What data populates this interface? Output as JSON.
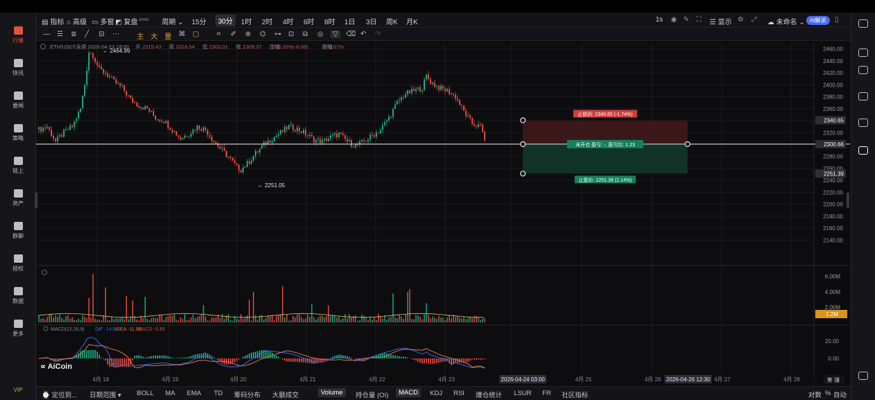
{
  "sidebar": {
    "items": [
      {
        "label": "行情",
        "active": true
      },
      {
        "label": "快讯"
      },
      {
        "label": "要闻"
      },
      {
        "label": "策略"
      },
      {
        "label": "链上"
      },
      {
        "label": "资产"
      },
      {
        "label": "群聊"
      },
      {
        "label": "授权"
      },
      {
        "label": "数据"
      },
      {
        "label": "更多"
      }
    ],
    "vip": "VIP"
  },
  "toolbar": {
    "indicators": "指标",
    "advanced": "高级",
    "multi_window": "多窗",
    "replay": "复盘",
    "period": "周期",
    "timeframes": [
      "15分",
      "30分",
      "1时",
      "2时",
      "4时",
      "6时",
      "8时",
      "1日",
      "3日",
      "周K",
      "月K"
    ],
    "selected_timeframe": "30分",
    "interval": "1s",
    "display": "显示",
    "unnamed": "未命名",
    "ai_button": "AI解读"
  },
  "drawing_tools": {
    "labels": [
      "主",
      "大",
      "量"
    ]
  },
  "info": {
    "symbol": "ETH/USDT永续",
    "time": "2026-04-23 18:00",
    "open_label": "开",
    "open": "2315.43",
    "high_label": "高",
    "high": "2318.54",
    "low_label": "低",
    "low": "2303.01",
    "close_label": "收",
    "close": "2309.37",
    "change_label": "涨幅",
    "change": "-0.26%(-6.06)",
    "amp_label": "振幅",
    "amp": "0.67%"
  },
  "chart_data": {
    "type": "candlestick",
    "price_axis": {
      "ticks": [
        "2460.00",
        "2440.00",
        "2420.00",
        "2400.00",
        "2380.00",
        "2360.00",
        "2340.00",
        "2320.00",
        "2300.00",
        "2280.00",
        "2260.00",
        "2240.00",
        "2220.00",
        "2200.00",
        "2180.00",
        "2160.00",
        "2140.00"
      ],
      "ylim": [
        2130,
        2470
      ]
    },
    "price_badges": {
      "stop_loss": "2340.65",
      "entry": "2300.66",
      "take_profit": "2251.39"
    },
    "annotations": {
      "high": "2464.99",
      "low": "2251.05"
    },
    "x_labels": [
      "4月 18",
      "4月 19",
      "4月 20",
      "4月 21",
      "4月 22",
      "4月 23",
      "4月 25",
      "4月 26",
      "4月 27",
      "4月 28"
    ],
    "crosshair_x": "2026-04-24 03:00",
    "crosshair_x2": "2026-04-26 12:30",
    "close_path": [
      [
        0,
        2325
      ],
      [
        4,
        2330
      ],
      [
        8,
        2305
      ],
      [
        12,
        2320
      ],
      [
        16,
        2330
      ],
      [
        20,
        2360
      ],
      [
        22,
        2400
      ],
      [
        24,
        2455
      ],
      [
        26,
        2450
      ],
      [
        29,
        2425
      ],
      [
        32,
        2420
      ],
      [
        36,
        2405
      ],
      [
        40,
        2395
      ],
      [
        44,
        2375
      ],
      [
        48,
        2365
      ],
      [
        52,
        2360
      ],
      [
        56,
        2345
      ],
      [
        60,
        2340
      ],
      [
        64,
        2325
      ],
      [
        68,
        2310
      ],
      [
        72,
        2318
      ],
      [
        76,
        2330
      ],
      [
        80,
        2325
      ],
      [
        84,
        2305
      ],
      [
        88,
        2290
      ],
      [
        92,
        2275
      ],
      [
        95,
        2262
      ],
      [
        97,
        2258
      ],
      [
        100,
        2268
      ],
      [
        104,
        2285
      ],
      [
        108,
        2300
      ],
      [
        112,
        2310
      ],
      [
        116,
        2320
      ],
      [
        120,
        2330
      ],
      [
        124,
        2326
      ],
      [
        128,
        2318
      ],
      [
        132,
        2308
      ],
      [
        136,
        2305
      ],
      [
        140,
        2312
      ],
      [
        144,
        2318
      ],
      [
        148,
        2305
      ],
      [
        152,
        2298
      ],
      [
        156,
        2305
      ],
      [
        160,
        2315
      ],
      [
        164,
        2325
      ],
      [
        168,
        2345
      ],
      [
        172,
        2370
      ],
      [
        176,
        2385
      ],
      [
        180,
        2390
      ],
      [
        184,
        2395
      ],
      [
        186,
        2415
      ],
      [
        188,
        2405
      ],
      [
        192,
        2395
      ],
      [
        196,
        2390
      ],
      [
        200,
        2380
      ],
      [
        204,
        2355
      ],
      [
        208,
        2335
      ],
      [
        212,
        2330
      ],
      [
        214,
        2310
      ]
    ],
    "position": {
      "stop_loss_label": "止损价: 2340.65 (-1.74%)",
      "status_label": "未开仓 盈亏: -, 盈亏比: 1.23",
      "take_profit_label": "止盈价: 2251.39 (2.14%)"
    },
    "volume": {
      "ticks": [
        "6.00M",
        "4.00M",
        "2.00M"
      ],
      "current": "1.2M",
      "peak_index": 26
    },
    "macd": {
      "label": "MACD(12,26,9)",
      "dif": "DIF -14.58",
      "dea": "DEA -11.92",
      "macd": "MACD -5.85",
      "ticks": [
        "20.00",
        "0.00"
      ]
    }
  },
  "bottom_bar": {
    "locate": "定位到...",
    "date_range": "日期范围",
    "indicators": [
      "BOLL",
      "MA",
      "EMA",
      "TD",
      "筹码分布",
      "大额成交"
    ],
    "sub_indicators": [
      "Volume",
      "持仓量 (OI)",
      "MACD",
      "KDJ",
      "RSI",
      "爆仓统计",
      "LSUR",
      "FR",
      "社区指标"
    ],
    "active_sub": [
      "Volume",
      "MACD"
    ],
    "log": "对数",
    "percent": "%",
    "auto": "自动"
  },
  "logo": "AiCoin",
  "colors": {
    "up": "#1fa67f",
    "down": "#e5463c",
    "accent": "#e0513f",
    "blue": "#2f6cf5",
    "badge_gold": "#d9941e"
  }
}
